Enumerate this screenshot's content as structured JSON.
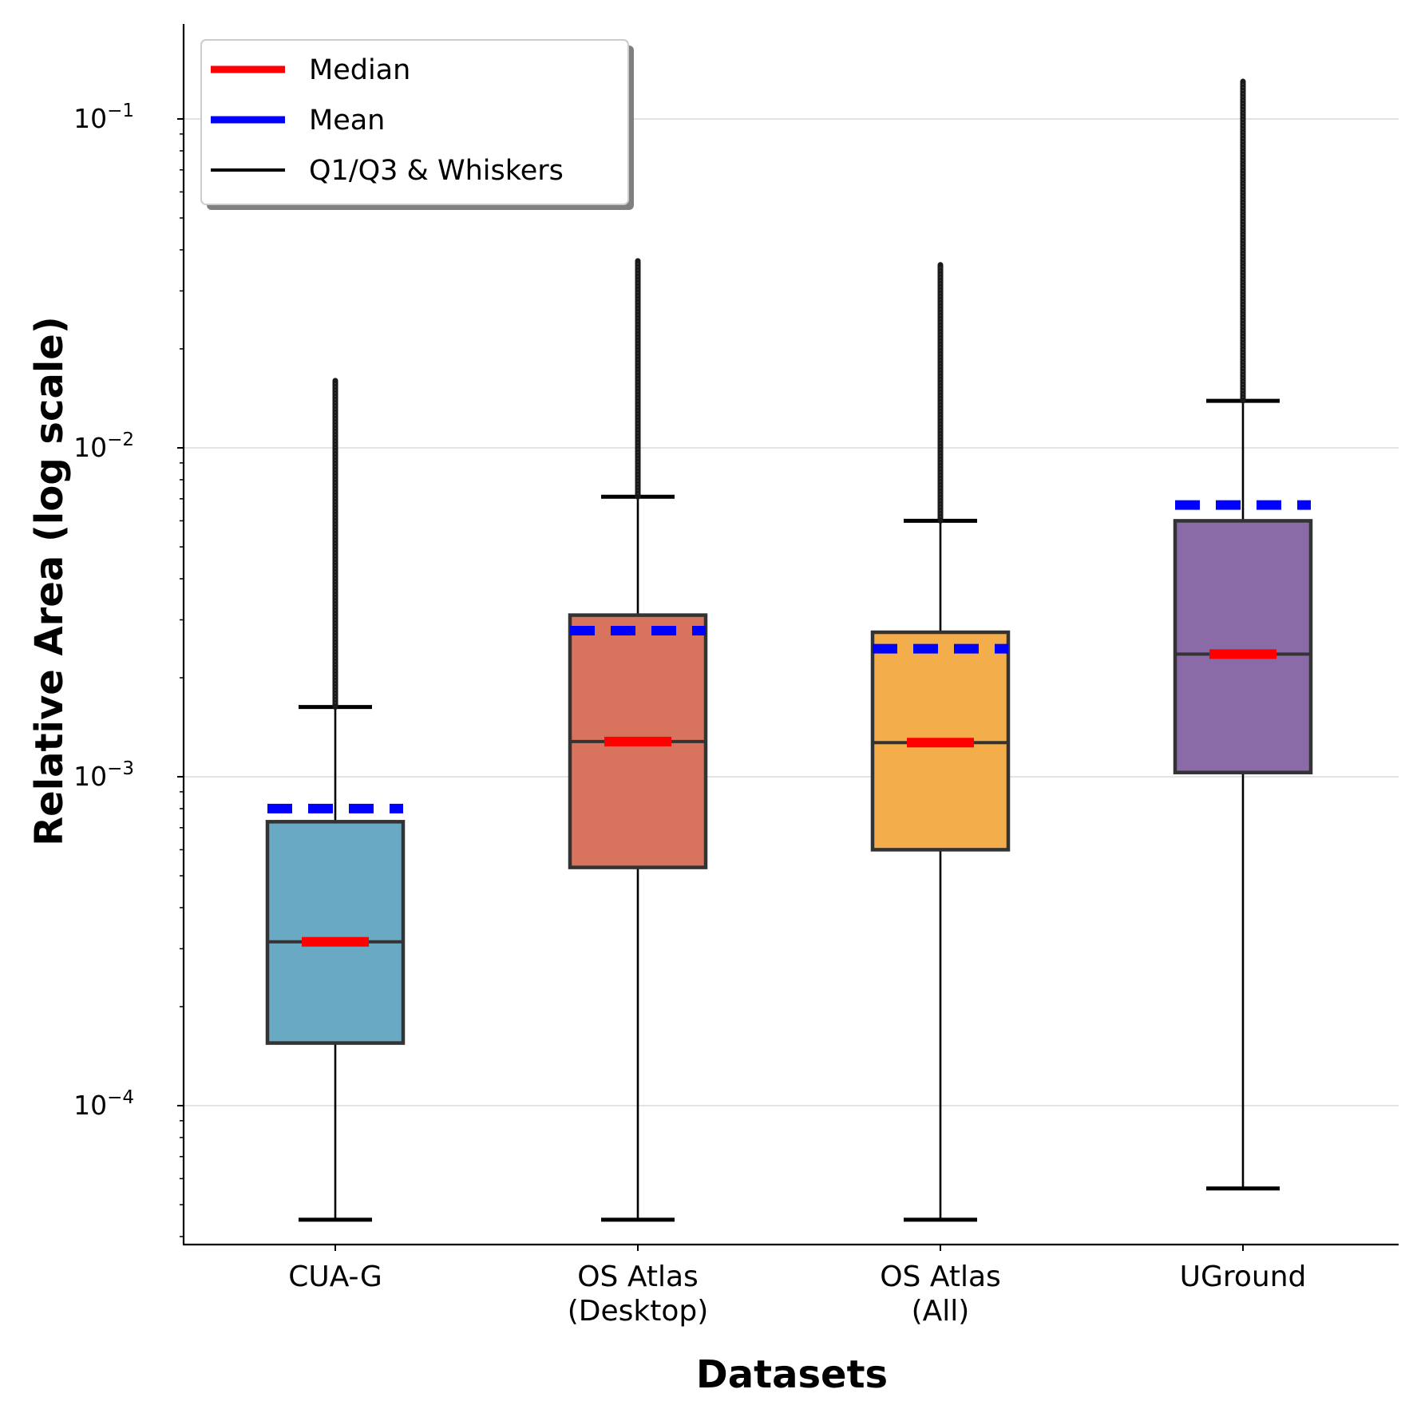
{
  "chart_data": {
    "type": "box",
    "title": "",
    "xlabel": "Datasets",
    "ylabel": "Relative Area (log scale)",
    "yscale": "log",
    "ylim": [
      4.5e-05,
      0.2
    ],
    "yticks": [
      {
        "value": 0.0001,
        "base": "10",
        "exp": "−4"
      },
      {
        "value": 0.001,
        "base": "10",
        "exp": "−3"
      },
      {
        "value": 0.01,
        "base": "10",
        "exp": "−2"
      },
      {
        "value": 0.1,
        "base": "10",
        "exp": "−1"
      }
    ],
    "grid": "horizontal",
    "legend_position": "top-left",
    "legend": [
      {
        "label": "Median",
        "color": "#ff0000",
        "style": "thick"
      },
      {
        "label": "Mean",
        "color": "#0000ff",
        "style": "thick"
      },
      {
        "label": "Q1/Q3 & Whiskers",
        "color": "#000000",
        "style": "thin"
      }
    ],
    "datasets": [
      {
        "label": [
          "CUA-G"
        ],
        "color": "#6aa9c4",
        "q1": 0.000155,
        "median": 0.000315,
        "q3": 0.00073,
        "mean": 0.0008,
        "whisker_low": 4.5e-05,
        "whisker_high": 0.00163,
        "outlier_max": 0.016
      },
      {
        "label": [
          "OS Atlas",
          "(Desktop)"
        ],
        "color": "#d8745d",
        "q1": 0.00053,
        "median": 0.00128,
        "q3": 0.0031,
        "mean": 0.00278,
        "whisker_low": 4.5e-05,
        "whisker_high": 0.0071,
        "outlier_max": 0.037
      },
      {
        "label": [
          "OS Atlas",
          "(All)"
        ],
        "color": "#f3ae4b",
        "q1": 0.0006,
        "median": 0.00127,
        "q3": 0.00275,
        "mean": 0.00245,
        "whisker_low": 4.5e-05,
        "whisker_high": 0.006,
        "outlier_max": 0.036
      },
      {
        "label": [
          "UGround"
        ],
        "color": "#8a6ba7",
        "q1": 0.00103,
        "median": 0.00236,
        "q3": 0.006,
        "mean": 0.0067,
        "whisker_low": 5.6e-05,
        "whisker_high": 0.0139,
        "outlier_max": 0.13
      }
    ]
  }
}
